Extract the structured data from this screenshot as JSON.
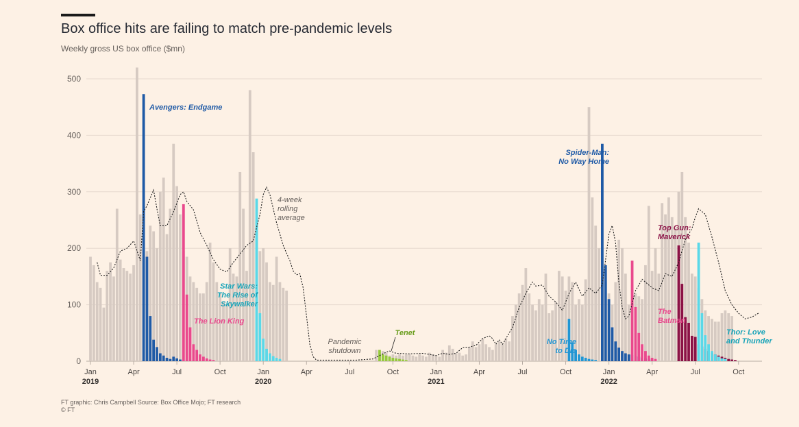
{
  "header": {
    "title": "Box office hits are failing to match pre-pandemic levels",
    "subtitle": "Weekly gross US box office ($mn)"
  },
  "footer": {
    "source": "FT graphic: Chris Campbell  Source: Box Office Mojo; FT research",
    "copyright": "© FT"
  },
  "chart_data": {
    "type": "bar",
    "title": "Box office hits are failing to match pre-pandemic levels",
    "subtitle": "Weekly gross US box office ($mn)",
    "ylim": [
      0,
      520
    ],
    "y_ticks": [
      0,
      100,
      200,
      300,
      400,
      500
    ],
    "grid": true,
    "x_ticks": [
      {
        "label": "Jan",
        "year": "2019",
        "week": 0
      },
      {
        "label": "Apr",
        "year": "",
        "week": 13
      },
      {
        "label": "Jul",
        "year": "",
        "week": 26
      },
      {
        "label": "Oct",
        "year": "",
        "week": 39
      },
      {
        "label": "Jan",
        "year": "2020",
        "week": 52
      },
      {
        "label": "Apr",
        "year": "",
        "week": 65
      },
      {
        "label": "Jul",
        "year": "",
        "week": 78
      },
      {
        "label": "Oct",
        "year": "",
        "week": 91
      },
      {
        "label": "Jan",
        "year": "2021",
        "week": 104
      },
      {
        "label": "Apr",
        "year": "",
        "week": 117
      },
      {
        "label": "Jul",
        "year": "",
        "week": 130
      },
      {
        "label": "Oct",
        "year": "",
        "week": 143
      },
      {
        "label": "Jan",
        "year": "2022",
        "week": 156
      },
      {
        "label": "Apr",
        "year": "",
        "week": 169
      },
      {
        "label": "Jul",
        "year": "",
        "week": 182
      },
      {
        "label": "Oct",
        "year": "",
        "week": 195
      }
    ],
    "total_weekly_gross": [
      185,
      170,
      140,
      130,
      95,
      160,
      175,
      150,
      270,
      180,
      165,
      160,
      155,
      170,
      520,
      260,
      200,
      195,
      240,
      230,
      200,
      300,
      325,
      225,
      270,
      385,
      310,
      260,
      195,
      185,
      150,
      140,
      130,
      120,
      120,
      140,
      210,
      175,
      140,
      120,
      105,
      100,
      200,
      155,
      150,
      335,
      270,
      160,
      480,
      370,
      250,
      195,
      200,
      175,
      140,
      135,
      185,
      140,
      130,
      125,
      0,
      0,
      0,
      0,
      0,
      0,
      0,
      0,
      0,
      0,
      0,
      0,
      0,
      0,
      0,
      0,
      0,
      0,
      0,
      0,
      0,
      0,
      0,
      0,
      0,
      0,
      20,
      15,
      18,
      15,
      10,
      12,
      10,
      12,
      10,
      12,
      12,
      10,
      8,
      12,
      10,
      8,
      15,
      12,
      10,
      8,
      20,
      15,
      28,
      22,
      14,
      15,
      10,
      12,
      25,
      35,
      25,
      30,
      40,
      30,
      25,
      20,
      30,
      35,
      30,
      40,
      35,
      80,
      100,
      120,
      135,
      165,
      120,
      100,
      90,
      110,
      100,
      155,
      85,
      90,
      105,
      160,
      150,
      125,
      150,
      140,
      100,
      110,
      100,
      145,
      450,
      290,
      240,
      200,
      160,
      140,
      120,
      100,
      140,
      215,
      200,
      155,
      100,
      135,
      120,
      115,
      110,
      170,
      275,
      160,
      200,
      155,
      280,
      260,
      290,
      255,
      235,
      300,
      335,
      255,
      210,
      155,
      150,
      130,
      110,
      90,
      80,
      75,
      70,
      70,
      85,
      90,
      85,
      80
    ],
    "highlighted_films": [
      {
        "name": "Avengers: Endgame",
        "color": "#1f5aa6",
        "start_week": 16,
        "values": [
          473,
          185,
          80,
          38,
          25,
          14,
          10,
          6,
          4,
          8,
          5,
          3
        ]
      },
      {
        "name": "The Lion King",
        "color": "#e9498d",
        "start_week": 28,
        "values": [
          278,
          118,
          60,
          30,
          20,
          12,
          8,
          5,
          3,
          2
        ]
      },
      {
        "name": "Star Wars: The Rise of Skywalker",
        "color": "#5ad8e8",
        "start_week": 50,
        "values": [
          288,
          85,
          40,
          22,
          14,
          9,
          6,
          4
        ]
      },
      {
        "name": "Tenet",
        "color": "#96c93d",
        "start_week": 87,
        "values": [
          20,
          12,
          10,
          8,
          6,
          5,
          4,
          3,
          2
        ]
      },
      {
        "name": "No Time to Die",
        "color": "#2196d4",
        "start_week": 144,
        "values": [
          75,
          33,
          20,
          12,
          8,
          6,
          4,
          3,
          2
        ]
      },
      {
        "name": "Spider-Man: No Way Home",
        "color": "#1f5aa6",
        "start_week": 154,
        "values": [
          385,
          170,
          110,
          60,
          35,
          24,
          18,
          14,
          12,
          11,
          9,
          8,
          6,
          5,
          4,
          3
        ]
      },
      {
        "name": "The Batman",
        "color": "#e9498d",
        "start_week": 163,
        "values": [
          178,
          96,
          50,
          30,
          18,
          10,
          6,
          4
        ]
      },
      {
        "name": "Top Gun: Maverick",
        "color": "#8b1246",
        "start_week": 177,
        "values": [
          205,
          137,
          78,
          68,
          45,
          43,
          30,
          26,
          22,
          18,
          15,
          12,
          10,
          8,
          6,
          4,
          3,
          2
        ]
      },
      {
        "name": "Thor: Love and Thunder",
        "color": "#5ad8e8",
        "start_week": 183,
        "values": [
          210,
          85,
          46,
          30,
          18,
          12,
          8,
          5,
          4
        ]
      }
    ],
    "rolling_average": {
      "name": "4-week rolling average",
      "points": [
        [
          2,
          175
        ],
        [
          3,
          152
        ],
        [
          5,
          152
        ],
        [
          7,
          165
        ],
        [
          9,
          195
        ],
        [
          11,
          200
        ],
        [
          13,
          213
        ],
        [
          15,
          178
        ],
        [
          16,
          265
        ],
        [
          17,
          275
        ],
        [
          19,
          303
        ],
        [
          20,
          270
        ],
        [
          21,
          240
        ],
        [
          23,
          240
        ],
        [
          25,
          265
        ],
        [
          27,
          295
        ],
        [
          28,
          300
        ],
        [
          29,
          283
        ],
        [
          31,
          268
        ],
        [
          33,
          228
        ],
        [
          35,
          205
        ],
        [
          37,
          180
        ],
        [
          39,
          163
        ],
        [
          41,
          158
        ],
        [
          43,
          175
        ],
        [
          45,
          190
        ],
        [
          47,
          205
        ],
        [
          49,
          213
        ],
        [
          50,
          237
        ],
        [
          51,
          260
        ],
        [
          52,
          295
        ],
        [
          53,
          308
        ],
        [
          54,
          295
        ],
        [
          56,
          245
        ],
        [
          58,
          205
        ],
        [
          60,
          178
        ],
        [
          61,
          160
        ],
        [
          62,
          153
        ],
        [
          63,
          155
        ],
        [
          64,
          130
        ],
        [
          65,
          80
        ],
        [
          66,
          30
        ],
        [
          67,
          8
        ],
        [
          68,
          2
        ],
        [
          70,
          2
        ],
        [
          75,
          2
        ],
        [
          80,
          2
        ],
        [
          85,
          4
        ],
        [
          87,
          10
        ],
        [
          89,
          16
        ],
        [
          90,
          18
        ],
        [
          92,
          14
        ],
        [
          96,
          13
        ],
        [
          100,
          14
        ],
        [
          102,
          12
        ],
        [
          104,
          10
        ],
        [
          106,
          14
        ],
        [
          108,
          12
        ],
        [
          110,
          14
        ],
        [
          112,
          24
        ],
        [
          114,
          25
        ],
        [
          116,
          28
        ],
        [
          118,
          40
        ],
        [
          120,
          45
        ],
        [
          121,
          40
        ],
        [
          122,
          30
        ],
        [
          123,
          38
        ],
        [
          124,
          30
        ],
        [
          125,
          40
        ],
        [
          127,
          60
        ],
        [
          129,
          95
        ],
        [
          131,
          120
        ],
        [
          133,
          140
        ],
        [
          134,
          133
        ],
        [
          136,
          135
        ],
        [
          138,
          115
        ],
        [
          140,
          105
        ],
        [
          142,
          90
        ],
        [
          144,
          120
        ],
        [
          146,
          140
        ],
        [
          148,
          115
        ],
        [
          150,
          130
        ],
        [
          152,
          120
        ],
        [
          154,
          135
        ],
        [
          155,
          180
        ],
        [
          156,
          225
        ],
        [
          157,
          240
        ],
        [
          158,
          210
        ],
        [
          159,
          140
        ],
        [
          160,
          95
        ],
        [
          161,
          75
        ],
        [
          162,
          80
        ],
        [
          164,
          125
        ],
        [
          166,
          145
        ],
        [
          167,
          140
        ],
        [
          169,
          130
        ],
        [
          171,
          125
        ],
        [
          173,
          155
        ],
        [
          175,
          150
        ],
        [
          177,
          175
        ],
        [
          179,
          215
        ],
        [
          181,
          235
        ],
        [
          182,
          255
        ],
        [
          183,
          270
        ],
        [
          185,
          260
        ],
        [
          187,
          220
        ],
        [
          189,
          175
        ],
        [
          191,
          125
        ],
        [
          193,
          100
        ],
        [
          195,
          85
        ],
        [
          197,
          75
        ],
        [
          199,
          78
        ],
        [
          201,
          85
        ]
      ]
    },
    "annotations": [
      {
        "text": "Avengers: Endgame",
        "color": "#1f5aa6"
      },
      {
        "text": "4-week rolling average",
        "color": "#66605c"
      },
      {
        "text": "The Lion King",
        "color": "#e9498d"
      },
      {
        "text": "Star Wars: The Rise of Skywalker",
        "color": "#17a3b8"
      },
      {
        "text": "Pandemic shutdown",
        "color": "#66605c"
      },
      {
        "text": "Tenet",
        "color": "#6b9e1f"
      },
      {
        "text": "No Time to Die",
        "color": "#2196d4"
      },
      {
        "text": "Spider-Man: No Way Home",
        "color": "#1f5aa6"
      },
      {
        "text": "The Batman",
        "color": "#e9498d"
      },
      {
        "text": "Top Gun: Maverick",
        "color": "#8b1246"
      },
      {
        "text": "Thor: Love and Thunder",
        "color": "#17a3b8"
      }
    ]
  }
}
